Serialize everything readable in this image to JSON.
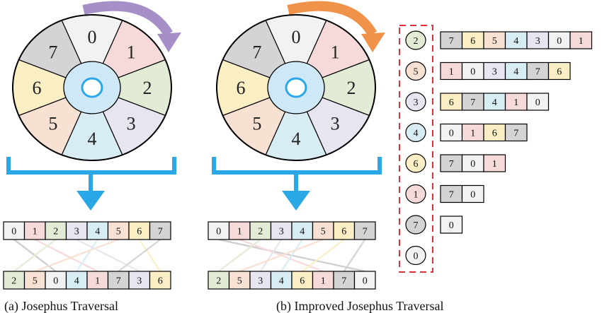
{
  "colors": {
    "0": "#f2f2f2",
    "1": "#f6d9d9",
    "2": "#e2ecd5",
    "3": "#e7e5f0",
    "4": "#d8ecf4",
    "5": "#f8e0d2",
    "6": "#faefc4",
    "7": "#d4d4d4",
    "hub": "#cfe8f7",
    "arrow_left": "#a58fc6",
    "arrow_right": "#f0924a",
    "bracket": "#2aa7e6",
    "dash_box": "#e0303a"
  },
  "panel_a": {
    "caption": "(a) Josephus Traversal",
    "wheel_labels": [
      "0",
      "1",
      "2",
      "3",
      "4",
      "5",
      "6",
      "7"
    ],
    "top_row": [
      "0",
      "1",
      "2",
      "3",
      "4",
      "5",
      "6",
      "7"
    ],
    "bottom_row": [
      "2",
      "5",
      "0",
      "4",
      "1",
      "7",
      "3",
      "6"
    ]
  },
  "panel_b": {
    "caption": "(b) Improved Josephus Traversal",
    "wheel_labels": [
      "0",
      "1",
      "2",
      "3",
      "4",
      "5",
      "6",
      "7"
    ],
    "top_row": [
      "0",
      "1",
      "2",
      "3",
      "4",
      "5",
      "6",
      "7"
    ],
    "bottom_row": [
      "2",
      "5",
      "3",
      "4",
      "6",
      "1",
      "7",
      "0"
    ],
    "steps": [
      {
        "pick": "2",
        "remaining": [
          "7",
          "6",
          "5",
          "4",
          "3",
          "0",
          "1"
        ]
      },
      {
        "pick": "5",
        "remaining": [
          "1",
          "0",
          "3",
          "4",
          "7",
          "6"
        ]
      },
      {
        "pick": "3",
        "remaining": [
          "6",
          "7",
          "4",
          "1",
          "0"
        ]
      },
      {
        "pick": "4",
        "remaining": [
          "0",
          "1",
          "6",
          "7"
        ]
      },
      {
        "pick": "6",
        "remaining": [
          "7",
          "0",
          "1"
        ]
      },
      {
        "pick": "1",
        "remaining": [
          "7",
          "0"
        ]
      },
      {
        "pick": "7",
        "remaining": [
          "0"
        ]
      },
      {
        "pick": "0",
        "remaining": []
      }
    ]
  }
}
